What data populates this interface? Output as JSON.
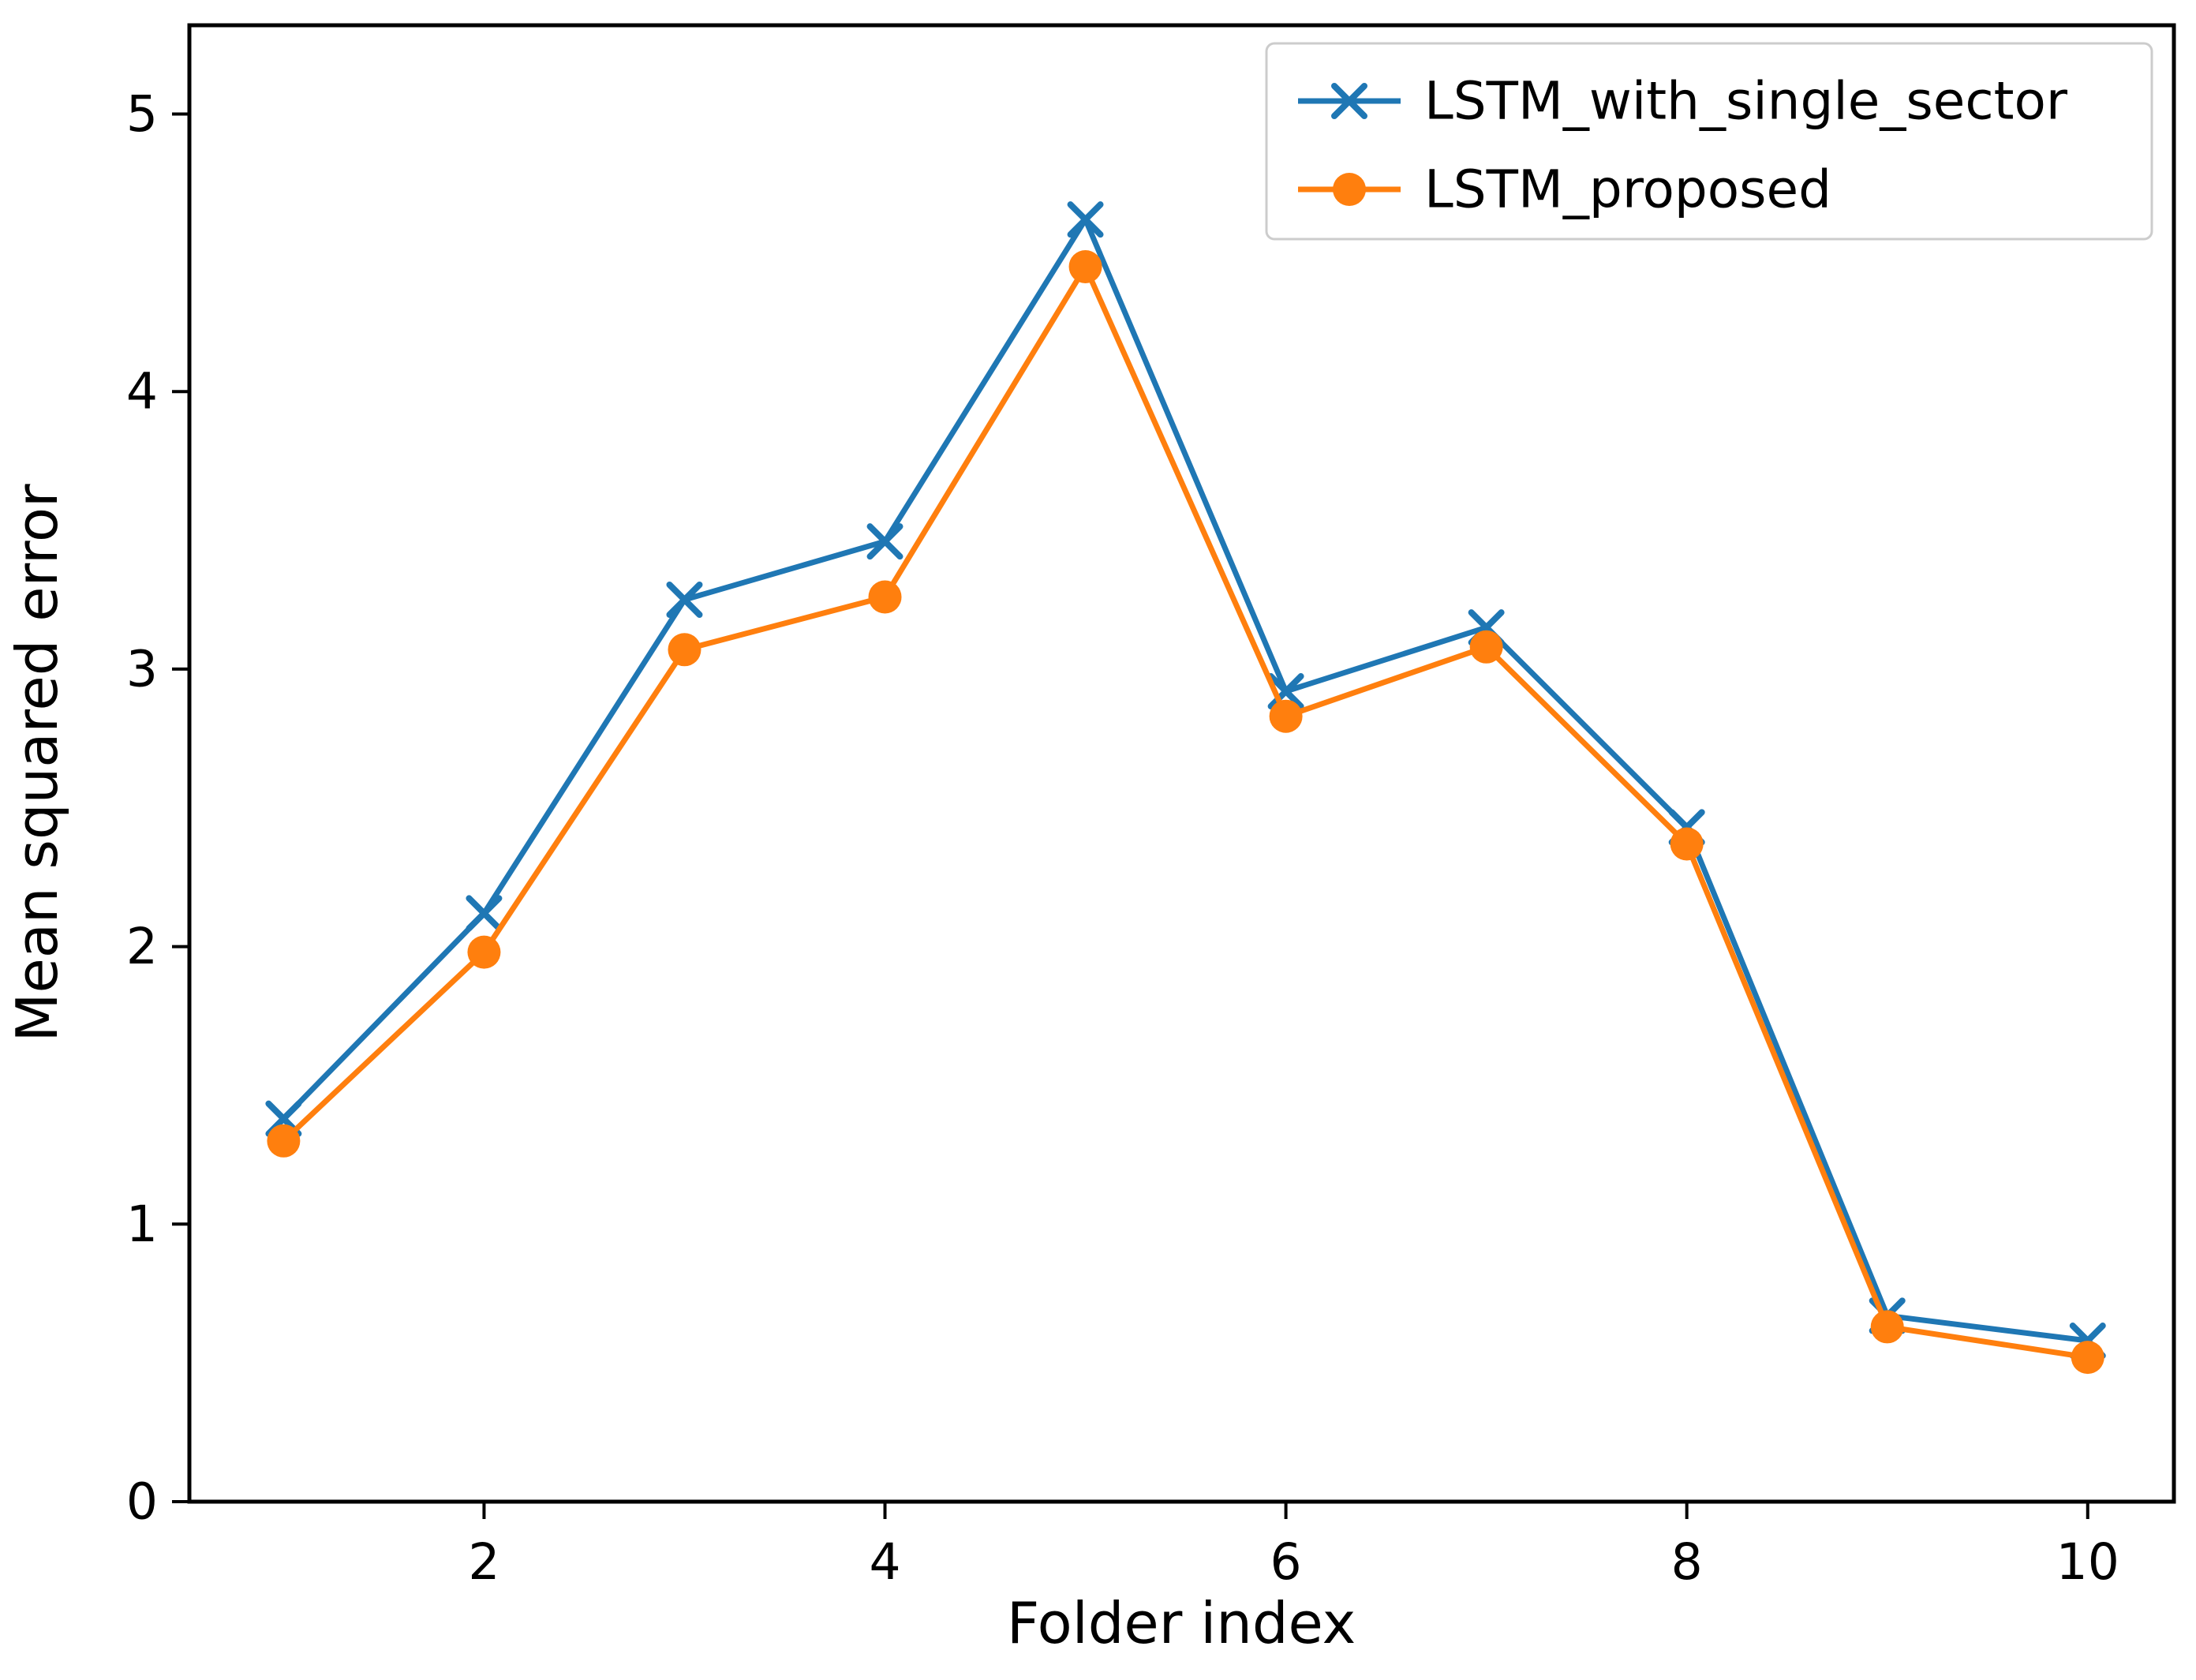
{
  "page": {
    "background_color": "#ffffff"
  },
  "chart_data": {
    "type": "line",
    "x": [
      1,
      2,
      3,
      4,
      5,
      6,
      7,
      8,
      9,
      10
    ],
    "series": [
      {
        "name": "LSTM_with_single_sector",
        "color": "#1f77b4",
        "marker": "x",
        "values": [
          1.38,
          2.12,
          3.25,
          3.46,
          4.62,
          2.92,
          3.15,
          2.43,
          0.67,
          0.58
        ]
      },
      {
        "name": "LSTM_proposed",
        "color": "#ff7f0e",
        "marker": "o",
        "values": [
          1.3,
          1.98,
          3.07,
          3.26,
          4.45,
          2.83,
          3.08,
          2.37,
          0.63,
          0.52
        ]
      }
    ],
    "xlabel": "Folder index",
    "ylabel": "Mean squared error",
    "xticks": [
      2,
      4,
      6,
      8,
      10
    ],
    "yticks": [
      0,
      1,
      2,
      3,
      4,
      5
    ],
    "xlim": [
      0.53,
      10.43
    ],
    "ylim": [
      0,
      5.32
    ],
    "grid": false,
    "legend": {
      "position": "upper right",
      "border_color": "#cccccc",
      "background": "#ffffff"
    },
    "axis_color": "#000000"
  }
}
